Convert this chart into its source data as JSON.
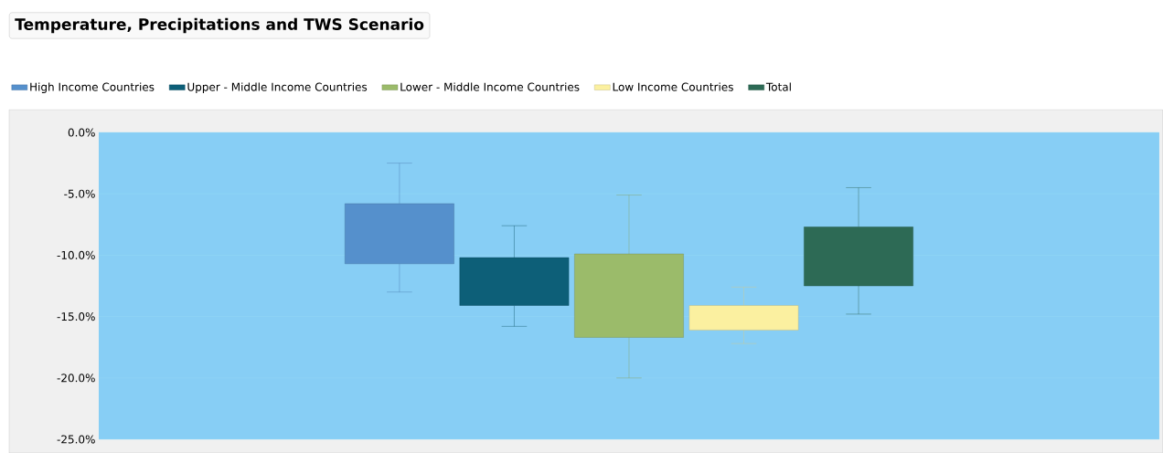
{
  "chart_data": {
    "type": "box",
    "title": "Temperature, Precipitations and TWS Scenario",
    "categories": [
      null
    ],
    "series": [
      {
        "name": "High Income Countries",
        "color": "#5590cc",
        "boxes": [
          {
            "low": -13.0,
            "q1": -10.7,
            "q3": -5.8,
            "high": -2.5
          }
        ]
      },
      {
        "name": "Upper - Middle Income Countries",
        "color": "#0d5f78",
        "boxes": [
          {
            "low": -15.8,
            "q1": -14.1,
            "q3": -10.2,
            "high": -7.6
          }
        ]
      },
      {
        "name": "Lower - Middle Income Countries",
        "color": "#9bbb6a",
        "boxes": [
          {
            "low": -20.0,
            "q1": -16.7,
            "q3": -9.9,
            "high": -5.1
          }
        ]
      },
      {
        "name": "Low Income Countries",
        "color": "#fbf0a0",
        "boxes": [
          {
            "low": -17.2,
            "q1": -16.1,
            "q3": -14.1,
            "high": -12.6
          }
        ]
      },
      {
        "name": "Total",
        "color": "#2d6a55",
        "boxes": [
          {
            "low": -14.8,
            "q1": -12.5,
            "q3": -7.7,
            "high": -4.5
          }
        ]
      }
    ],
    "ylim": [
      -25,
      0
    ],
    "yticks": [
      {
        "value": -25,
        "label": "-25.0%"
      },
      {
        "value": -20,
        "label": "-20.0%"
      },
      {
        "value": -15,
        "label": "-15.0%"
      },
      {
        "value": -10,
        "label": "-10.0%"
      },
      {
        "value": -5,
        "label": "-5.0%"
      },
      {
        "value": 0,
        "label": "0.0%"
      }
    ],
    "grid": "y",
    "legend": "top left"
  }
}
